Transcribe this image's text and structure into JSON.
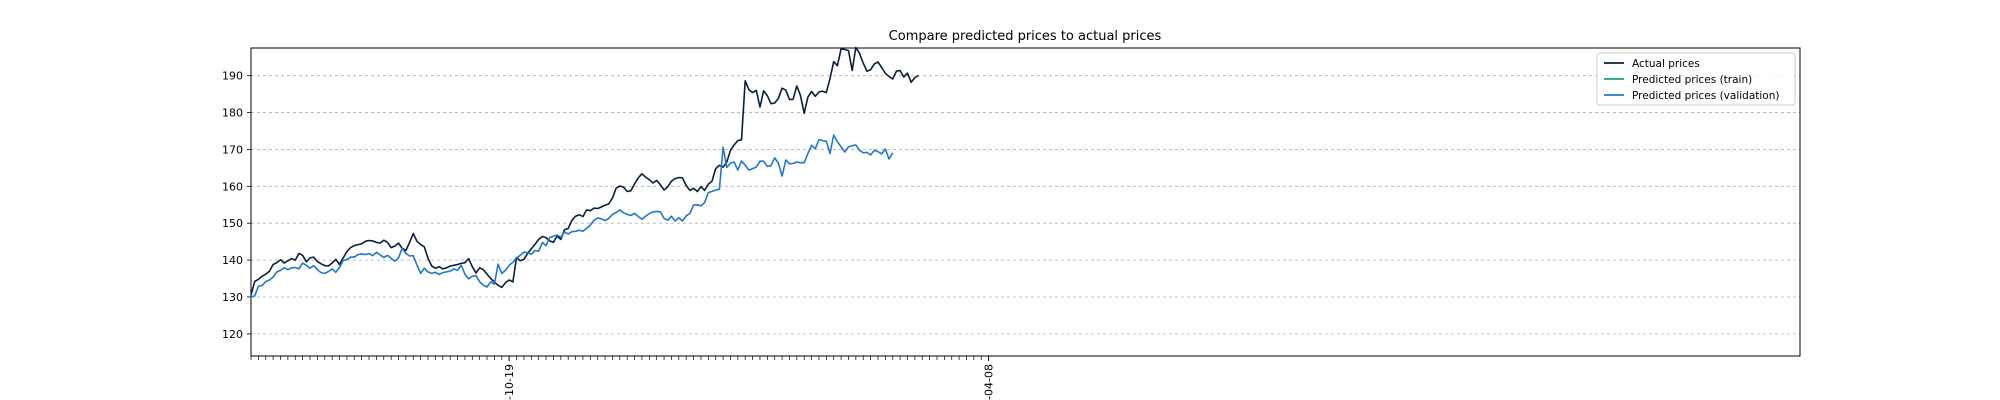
{
  "chart_data": {
    "type": "line",
    "title": "Compare predicted prices to actual prices",
    "xlabel": "",
    "ylabel": "",
    "ylim": [
      114,
      197.5
    ],
    "yticks": [
      120,
      130,
      140,
      150,
      160,
      170,
      180,
      190
    ],
    "grid": "y-dashed",
    "legend_position": "top-right",
    "x_tick_labels": [
      {
        "label": "-10-19",
        "index": 70
      },
      {
        "label": "-04-08",
        "index": 200
      }
    ],
    "x_max_index": 420,
    "series": [
      {
        "name": "Actual prices",
        "color": "#0a1f3f",
        "values": [
          130.5,
          134.2,
          134.8,
          135.6,
          136.2,
          137.0,
          138.8,
          139.3,
          140.1,
          139.2,
          139.8,
          140.4,
          140.0,
          141.8,
          141.3,
          139.5,
          140.6,
          140.8,
          139.6,
          139.0,
          138.5,
          138.4,
          139.2,
          140.2,
          138.8,
          140.6,
          142.3,
          143.4,
          143.9,
          144.2,
          144.4,
          145.1,
          145.3,
          145.2,
          144.8,
          144.6,
          145.4,
          144.8,
          143.4,
          143.8,
          144.6,
          143.2,
          142.6,
          144.8,
          147.2,
          145.1,
          144.2,
          143.6,
          140.5,
          138.4,
          137.8,
          138.2,
          137.6,
          137.9,
          138.4,
          138.6,
          138.8,
          139.1,
          139.3,
          140.4,
          138.2,
          136.5,
          137.9,
          137.4,
          136.2,
          135.0,
          134.0,
          133.2,
          132.6,
          133.9,
          134.6,
          134.1,
          140.7,
          139.8,
          140.2,
          141.8,
          143.1,
          144.3,
          145.6,
          146.4,
          146.1,
          145.2,
          144.8,
          146.5,
          145.6,
          148.2,
          148.6,
          150.8,
          151.9,
          152.3,
          151.8,
          153.6,
          153.4,
          154.1,
          154.0,
          154.4,
          154.9,
          155.2,
          156.8,
          159.5,
          160.1,
          159.8,
          158.6,
          158.8,
          160.7,
          162.3,
          163.4,
          162.5,
          161.8,
          160.9,
          161.6,
          160.4,
          159.0,
          159.9,
          161.4,
          162.1,
          162.4,
          162.3,
          160.2,
          158.9,
          159.5,
          158.6,
          159.9,
          158.9,
          160.6,
          161.4,
          164.8,
          165.7,
          165.2,
          166.6,
          169.8,
          171.2,
          172.4,
          172.6,
          188.6,
          186.2,
          185.4,
          186.0,
          181.5,
          185.9,
          184.6,
          182.4,
          182.6,
          183.9,
          186.6,
          186.1,
          183.5,
          183.6,
          187.2,
          184.6,
          179.8,
          184.2,
          185.7,
          184.4,
          185.6,
          185.8,
          185.4,
          189.2,
          193.8,
          192.7,
          197.3,
          197.1,
          196.8,
          191.4,
          197.6,
          196.1,
          193.4,
          191.2,
          191.6,
          193.2,
          193.7,
          192.2,
          190.6,
          189.8,
          189.1,
          191.2,
          191.4,
          189.6,
          190.7,
          188.2,
          189.5,
          190.1
        ]
      },
      {
        "name": "Predicted prices (train)",
        "color": "#1f9e89",
        "values": []
      },
      {
        "name": "Predicted prices (validation)",
        "color": "#1f77d4",
        "values": [
          130.0,
          130.3,
          132.9,
          133.1,
          134.2,
          134.6,
          135.4,
          136.8,
          137.2,
          137.9,
          137.4,
          137.9,
          138.0,
          137.6,
          139.2,
          138.6,
          137.8,
          138.5,
          137.4,
          136.6,
          136.4,
          136.9,
          137.6,
          136.7,
          138.0,
          139.9,
          140.1,
          140.8,
          140.8,
          141.5,
          141.7,
          141.5,
          141.8,
          141.2,
          142.1,
          141.4,
          140.7,
          141.3,
          140.5,
          139.7,
          140.6,
          143.2,
          141.8,
          141.1,
          141.2,
          138.6,
          136.4,
          137.8,
          136.8,
          136.4,
          136.7,
          136.1,
          136.6,
          136.8,
          137.0,
          137.6,
          137.2,
          138.6,
          136.2,
          134.9,
          135.6,
          135.8,
          134.1,
          133.2,
          132.7,
          134.1,
          133.5,
          138.9,
          136.4,
          137.2,
          138.6,
          139.4,
          140.6,
          141.3,
          142.2,
          142.0,
          141.6,
          142.6,
          142.4,
          144.8,
          143.9,
          146.1,
          146.5,
          146.8,
          146.2,
          147.6,
          147.1,
          147.7,
          147.8,
          148.1,
          147.8,
          148.6,
          149.5,
          150.8,
          151.4,
          151.2,
          150.7,
          151.3,
          152.4,
          152.9,
          153.6,
          152.8,
          152.4,
          152.1,
          152.7,
          151.8,
          151.1,
          151.9,
          152.6,
          153.1,
          153.2,
          153.1,
          151.3,
          150.8,
          151.9,
          150.6,
          151.5,
          150.6,
          152.0,
          152.7,
          154.9,
          155.0,
          154.7,
          155.6,
          158.3,
          158.6,
          159.0,
          159.2,
          170.6,
          165.1,
          166.3,
          166.6,
          164.4,
          166.9,
          165.7,
          164.4,
          164.8,
          165.2,
          166.8,
          166.8,
          165.4,
          165.6,
          167.7,
          166.3,
          162.8,
          167.1,
          166.1,
          166.2,
          166.6,
          166.4,
          166.4,
          168.9,
          171.1,
          170.2,
          172.7,
          172.4,
          172.2,
          168.9,
          173.9,
          172.1,
          170.7,
          169.3,
          170.7,
          171.0,
          171.2,
          169.8,
          169.1,
          169.2,
          168.5,
          169.8,
          169.4,
          168.8,
          170.1,
          167.4,
          169.1
        ]
      }
    ]
  }
}
